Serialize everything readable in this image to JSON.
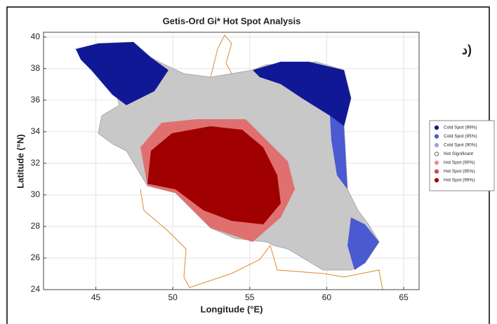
{
  "chart_data": {
    "type": "map",
    "title": "Getis-Ord Gi* Hot Spot Analysis",
    "x_label": "Longitude (°E)",
    "y_label": "Latitude (°N)",
    "annotations": [
      "د)"
    ],
    "xlim": [
      41.6,
      66
    ],
    "xticks": [
      45,
      50,
      55,
      60,
      65
    ],
    "ylim": [
      24,
      40.3
    ],
    "yticks": [
      24,
      26,
      28,
      30,
      32,
      34,
      36,
      38,
      40
    ],
    "grid": true,
    "legend": "right",
    "series": [
      {
        "name": "Cold Spot (99%)",
        "color": "#101896"
      },
      {
        "name": "Cold Spot (95%)",
        "color": "#4a5ad0"
      },
      {
        "name": "Cold Spot (90%)",
        "color": "#9aa4e2"
      },
      {
        "name": "Not Significant",
        "color": "#ffffff"
      },
      {
        "name": "Hot Spot (90%)",
        "color": "#e89090"
      },
      {
        "name": "Hot Spot (95%)",
        "color": "#d04848"
      },
      {
        "name": "Hot Spot (99%)",
        "color": "#a00000"
      }
    ]
  }
}
